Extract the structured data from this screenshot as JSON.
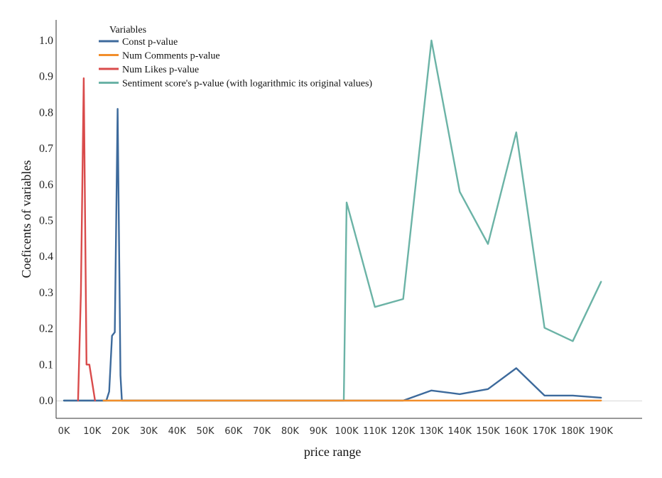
{
  "chart_data": {
    "type": "line",
    "title": "",
    "xlabel": "price range",
    "ylabel": "Coeficents of variables",
    "xlim": [
      -1.5,
      198
    ],
    "ylim": [
      -0.05,
      1.06
    ],
    "xticks": [
      {
        "value": 0,
        "label": "0K"
      },
      {
        "value": 10,
        "label": "10K"
      },
      {
        "value": 20,
        "label": "20K"
      },
      {
        "value": 30,
        "label": "30K"
      },
      {
        "value": 40,
        "label": "40K"
      },
      {
        "value": 50,
        "label": "50K"
      },
      {
        "value": 60,
        "label": "60K"
      },
      {
        "value": 70,
        "label": "70K"
      },
      {
        "value": 80,
        "label": "80K"
      },
      {
        "value": 90,
        "label": "90K"
      },
      {
        "value": 100,
        "label": "100K"
      },
      {
        "value": 110,
        "label": "110K"
      },
      {
        "value": 120,
        "label": "120K"
      },
      {
        "value": 130,
        "label": "130K"
      },
      {
        "value": 140,
        "label": "140K"
      },
      {
        "value": 150,
        "label": "150K"
      },
      {
        "value": 160,
        "label": "160K"
      },
      {
        "value": 170,
        "label": "170K"
      },
      {
        "value": 180,
        "label": "180K"
      },
      {
        "value": 190,
        "label": "190K"
      }
    ],
    "yticks": [
      {
        "value": 0.0,
        "label": "0.0"
      },
      {
        "value": 0.1,
        "label": "0.1"
      },
      {
        "value": 0.2,
        "label": "0.2"
      },
      {
        "value": 0.3,
        "label": "0.3"
      },
      {
        "value": 0.4,
        "label": "0.4"
      },
      {
        "value": 0.5,
        "label": "0.5"
      },
      {
        "value": 0.6,
        "label": "0.6"
      },
      {
        "value": 0.7,
        "label": "0.7"
      },
      {
        "value": 0.8,
        "label": "0.8"
      },
      {
        "value": 0.9,
        "label": "0.9"
      },
      {
        "value": 1.0,
        "label": "1.0"
      }
    ],
    "legend": {
      "title": "Variables",
      "position": "top-left"
    },
    "series": [
      {
        "name": "Sentiment score's p-value (with logarithmic its original values)",
        "color": "#6bb3a6",
        "x": [
          0,
          99,
          100,
          110,
          120,
          130,
          140,
          150,
          160,
          170,
          180,
          190
        ],
        "y": [
          0.0,
          0.0,
          0.55,
          0.26,
          0.282,
          1.0,
          0.58,
          0.435,
          0.745,
          0.202,
          0.165,
          0.33
        ]
      },
      {
        "name": "Const p-value",
        "color": "#3d6a9c",
        "x": [
          0,
          15,
          16,
          17,
          18,
          19,
          20,
          20.5,
          120,
          130,
          140,
          150,
          160,
          170,
          180,
          190
        ],
        "y": [
          0.0,
          0.0,
          0.025,
          0.18,
          0.19,
          0.81,
          0.07,
          0.0,
          0.0,
          0.028,
          0.018,
          0.032,
          0.09,
          0.014,
          0.014,
          0.008
        ]
      },
      {
        "name": "Num Comments p-value",
        "color": "#f28e2b",
        "x": [
          14,
          190
        ],
        "y": [
          0.0,
          0.0
        ]
      },
      {
        "name": "Num Likes p-value",
        "color": "#d94b4b",
        "x": [
          5,
          6,
          7,
          8,
          9,
          10,
          11
        ],
        "y": [
          0.0,
          0.3,
          0.895,
          0.1,
          0.1,
          0.05,
          0.0
        ]
      }
    ],
    "legend_order": [
      1,
      2,
      3,
      0
    ]
  }
}
